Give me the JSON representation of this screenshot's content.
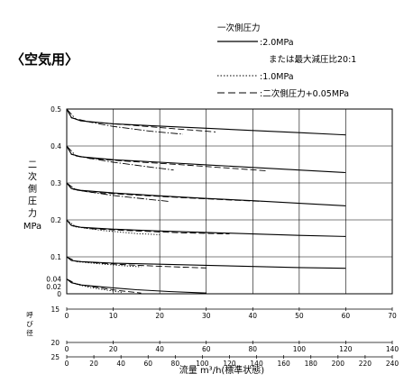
{
  "heading": "〈空気用〉",
  "legend": {
    "title": "一次側圧力",
    "items": [
      {
        "label": ":2.0MPa",
        "style": "solid"
      },
      {
        "label": "または最大減圧比20:1",
        "style": "none"
      },
      {
        "label": ":1.0MPa",
        "style": "dotted"
      },
      {
        "label": ":二次側圧力+0.05MPa",
        "style": "dashdash"
      }
    ]
  },
  "chart_data": {
    "type": "line",
    "title": "",
    "xlabel": "流量 m³/h(標準状態)",
    "ylabel": "二次側圧力 MPa",
    "ylim": [
      0,
      0.5
    ],
    "xlim": [
      0,
      70
    ],
    "x_unit_axis": "15",
    "grid": true,
    "yticks": [
      "0.5",
      "0.4",
      "0.3",
      "0.2",
      "0.1",
      "0.04",
      "0.02",
      "0"
    ],
    "ytick_values": [
      0.5,
      0.4,
      0.3,
      0.2,
      0.1,
      0.04,
      0.02,
      0
    ],
    "series": [
      {
        "style": "solid",
        "points": [
          [
            0,
            0.5
          ],
          [
            1,
            0.477
          ],
          [
            3,
            0.468
          ],
          [
            10,
            0.46
          ],
          [
            20,
            0.454
          ],
          [
            30,
            0.448
          ],
          [
            40,
            0.442
          ],
          [
            50,
            0.436
          ],
          [
            60,
            0.43
          ]
        ]
      },
      {
        "style": "dashdash",
        "points": [
          [
            0,
            0.5
          ],
          [
            1,
            0.476
          ],
          [
            5,
            0.465
          ],
          [
            15,
            0.455
          ],
          [
            25,
            0.445
          ],
          [
            32,
            0.438
          ]
        ]
      },
      {
        "style": "dashdot",
        "points": [
          [
            0,
            0.5
          ],
          [
            2,
            0.472
          ],
          [
            10,
            0.453
          ],
          [
            18,
            0.44
          ],
          [
            25,
            0.432
          ]
        ]
      },
      {
        "style": "solid",
        "points": [
          [
            0,
            0.4
          ],
          [
            1,
            0.378
          ],
          [
            3,
            0.371
          ],
          [
            10,
            0.363
          ],
          [
            20,
            0.356
          ],
          [
            30,
            0.349
          ],
          [
            40,
            0.342
          ],
          [
            50,
            0.335
          ],
          [
            60,
            0.328
          ]
        ]
      },
      {
        "style": "dashdash",
        "points": [
          [
            0,
            0.4
          ],
          [
            1,
            0.377
          ],
          [
            5,
            0.366
          ],
          [
            15,
            0.357
          ],
          [
            25,
            0.349
          ],
          [
            35,
            0.34
          ],
          [
            43,
            0.333
          ]
        ]
      },
      {
        "style": "dashdot",
        "points": [
          [
            0,
            0.4
          ],
          [
            2,
            0.373
          ],
          [
            10,
            0.356
          ],
          [
            18,
            0.343
          ],
          [
            23,
            0.335
          ]
        ]
      },
      {
        "style": "solid",
        "points": [
          [
            0,
            0.3
          ],
          [
            1,
            0.285
          ],
          [
            3,
            0.28
          ],
          [
            10,
            0.273
          ],
          [
            20,
            0.265
          ],
          [
            30,
            0.258
          ],
          [
            40,
            0.252
          ],
          [
            50,
            0.245
          ],
          [
            60,
            0.238
          ]
        ]
      },
      {
        "style": "dashdash",
        "points": [
          [
            0,
            0.3
          ],
          [
            1,
            0.284
          ],
          [
            5,
            0.275
          ],
          [
            15,
            0.267
          ],
          [
            25,
            0.26
          ],
          [
            35,
            0.254
          ],
          [
            42,
            0.25
          ]
        ]
      },
      {
        "style": "dashdot",
        "points": [
          [
            0,
            0.3
          ],
          [
            2,
            0.281
          ],
          [
            10,
            0.266
          ],
          [
            18,
            0.255
          ],
          [
            22,
            0.25
          ]
        ]
      },
      {
        "style": "solid",
        "points": [
          [
            0,
            0.2
          ],
          [
            1,
            0.185
          ],
          [
            3,
            0.18
          ],
          [
            10,
            0.175
          ],
          [
            20,
            0.17
          ],
          [
            30,
            0.166
          ],
          [
            40,
            0.162
          ],
          [
            50,
            0.158
          ],
          [
            60,
            0.155
          ]
        ]
      },
      {
        "style": "dashdash",
        "points": [
          [
            0,
            0.2
          ],
          [
            1,
            0.184
          ],
          [
            5,
            0.176
          ],
          [
            15,
            0.17
          ],
          [
            25,
            0.165
          ],
          [
            35,
            0.162
          ]
        ]
      },
      {
        "style": "dotted",
        "points": [
          [
            0,
            0.2
          ],
          [
            2,
            0.181
          ],
          [
            8,
            0.171
          ],
          [
            15,
            0.163
          ],
          [
            20,
            0.16
          ]
        ]
      },
      {
        "style": "solid",
        "points": [
          [
            0,
            0.1
          ],
          [
            1,
            0.09
          ],
          [
            3,
            0.087
          ],
          [
            10,
            0.083
          ],
          [
            20,
            0.08
          ],
          [
            30,
            0.077
          ],
          [
            40,
            0.074
          ],
          [
            50,
            0.071
          ],
          [
            60,
            0.069
          ]
        ]
      },
      {
        "style": "dashdash",
        "points": [
          [
            0,
            0.1
          ],
          [
            2,
            0.088
          ],
          [
            8,
            0.082
          ],
          [
            15,
            0.077
          ],
          [
            25,
            0.072
          ],
          [
            30,
            0.07
          ]
        ]
      },
      {
        "style": "dotted",
        "points": [
          [
            0,
            0.1
          ],
          [
            2,
            0.087
          ],
          [
            8,
            0.08
          ],
          [
            12,
            0.076
          ],
          [
            16,
            0.073
          ]
        ]
      },
      {
        "style": "solid",
        "points": [
          [
            0,
            0.04
          ],
          [
            1,
            0.03
          ],
          [
            3,
            0.024
          ],
          [
            8,
            0.018
          ],
          [
            15,
            0.011
          ],
          [
            22,
            0.006
          ],
          [
            30,
            0.002
          ]
        ]
      },
      {
        "style": "dashdash",
        "points": [
          [
            0,
            0.04
          ],
          [
            2,
            0.027
          ],
          [
            6,
            0.018
          ],
          [
            11,
            0.009
          ],
          [
            16,
            0.002
          ]
        ]
      },
      {
        "style": "dotted",
        "points": [
          [
            0,
            0.04
          ],
          [
            2,
            0.026
          ],
          [
            5,
            0.017
          ],
          [
            9,
            0.009
          ],
          [
            12,
            0.004
          ]
        ]
      }
    ],
    "bottom_axis": {
      "label": "呼び径",
      "scales": [
        {
          "nominal": "15",
          "ticks": [
            0,
            10,
            20,
            30,
            40,
            50,
            60,
            70
          ],
          "max": 70
        },
        {
          "nominal": "20",
          "ticks": [
            0,
            20,
            40,
            60,
            80,
            100,
            120,
            140
          ],
          "max": 140
        },
        {
          "nominal": "25",
          "ticks": [
            0,
            20,
            40,
            60,
            80,
            100,
            120,
            140,
            160,
            180,
            200,
            220,
            240
          ],
          "max": 240
        }
      ]
    }
  }
}
